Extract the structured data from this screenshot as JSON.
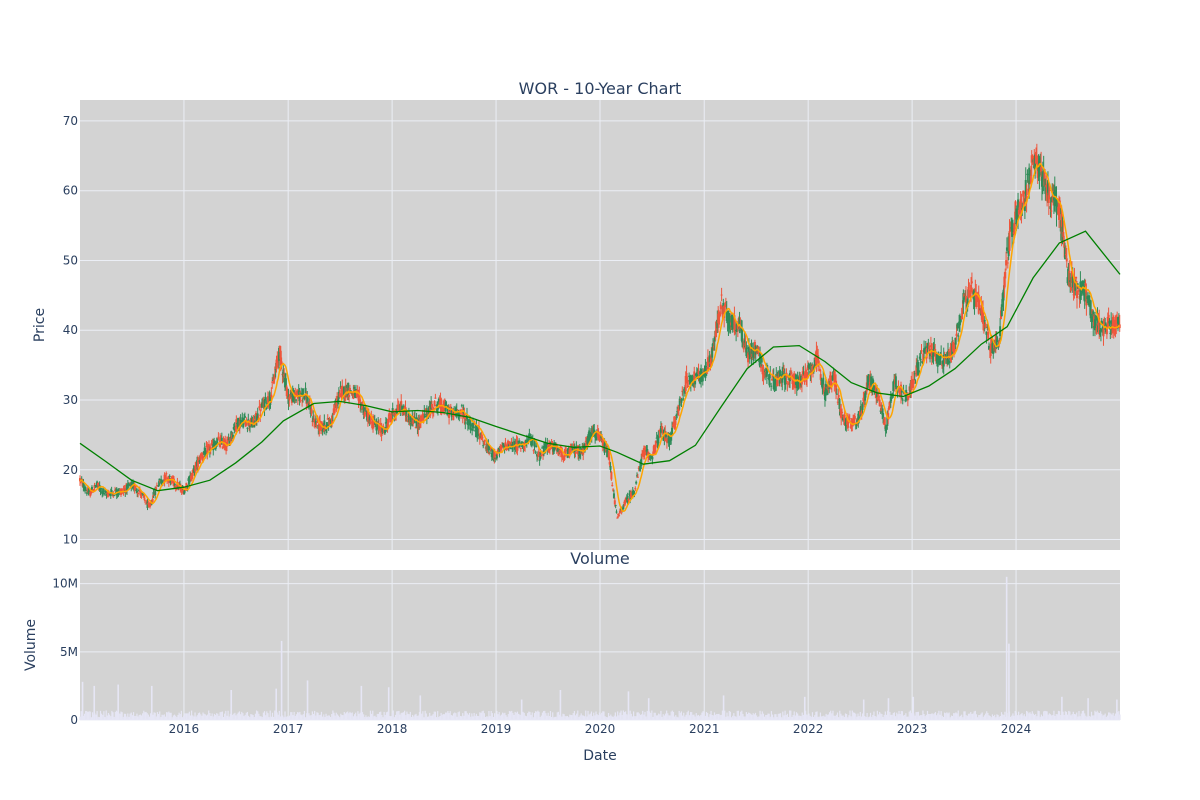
{
  "chart_data": [
    {
      "type": "candlestick",
      "title": "WOR - 10-Year Chart",
      "ylabel": "Price",
      "ylim": [
        8.5,
        73
      ],
      "yticks": [
        10,
        20,
        30,
        40,
        50,
        60,
        70
      ],
      "grid": true,
      "colors": {
        "up": "#2e8b57",
        "down": "#ef553b",
        "ma_short": "#ffa500",
        "ma_long": "#008000",
        "bg": "#d3d3d3",
        "grid": "#ebeef5"
      },
      "price_path": [
        [
          "2015-01-01",
          18.6
        ],
        [
          "2015-02-01",
          16.5
        ],
        [
          "2015-03-01",
          17.8
        ],
        [
          "2015-04-01",
          16.5
        ],
        [
          "2015-05-01",
          16.8
        ],
        [
          "2015-06-01",
          17.0
        ],
        [
          "2015-07-01",
          17.8
        ],
        [
          "2015-08-01",
          16.8
        ],
        [
          "2015-09-01",
          14.5
        ],
        [
          "2015-10-01",
          18.0
        ],
        [
          "2015-11-01",
          19.0
        ],
        [
          "2015-12-01",
          18.0
        ],
        [
          "2016-01-01",
          17.0
        ],
        [
          "2016-02-01",
          19.5
        ],
        [
          "2016-03-01",
          22.0
        ],
        [
          "2016-04-01",
          23.0
        ],
        [
          "2016-05-01",
          24.0
        ],
        [
          "2016-06-01",
          23.5
        ],
        [
          "2016-07-01",
          26.5
        ],
        [
          "2016-08-01",
          27.0
        ],
        [
          "2016-09-01",
          26.5
        ],
        [
          "2016-10-01",
          29.0
        ],
        [
          "2016-11-01",
          30.5
        ],
        [
          "2016-12-01",
          37.0
        ],
        [
          "2017-01-01",
          30.5
        ],
        [
          "2017-02-01",
          30.5
        ],
        [
          "2017-03-01",
          31.0
        ],
        [
          "2017-04-01",
          27.0
        ],
        [
          "2017-05-01",
          26.0
        ],
        [
          "2017-06-01",
          27.0
        ],
        [
          "2017-07-01",
          31.0
        ],
        [
          "2017-08-01",
          31.5
        ],
        [
          "2017-09-01",
          30.5
        ],
        [
          "2017-10-01",
          28.0
        ],
        [
          "2017-11-01",
          26.5
        ],
        [
          "2017-12-01",
          25.5
        ],
        [
          "2018-01-01",
          28.0
        ],
        [
          "2018-02-01",
          29.0
        ],
        [
          "2018-03-01",
          27.5
        ],
        [
          "2018-04-01",
          26.5
        ],
        [
          "2018-05-01",
          28.0
        ],
        [
          "2018-06-01",
          29.5
        ],
        [
          "2018-07-01",
          29.0
        ],
        [
          "2018-08-01",
          28.0
        ],
        [
          "2018-09-01",
          28.5
        ],
        [
          "2018-10-01",
          26.5
        ],
        [
          "2018-11-01",
          25.5
        ],
        [
          "2018-12-01",
          23.0
        ],
        [
          "2019-01-01",
          22.0
        ],
        [
          "2019-02-01",
          23.5
        ],
        [
          "2019-03-01",
          23.5
        ],
        [
          "2019-04-01",
          23.5
        ],
        [
          "2019-05-01",
          24.5
        ],
        [
          "2019-06-01",
          22.0
        ],
        [
          "2019-07-01",
          23.5
        ],
        [
          "2019-08-01",
          23.0
        ],
        [
          "2019-09-01",
          22.0
        ],
        [
          "2019-10-01",
          23.0
        ],
        [
          "2019-11-01",
          22.5
        ],
        [
          "2019-12-01",
          25.5
        ],
        [
          "2020-01-01",
          24.5
        ],
        [
          "2020-02-01",
          22.0
        ],
        [
          "2020-03-01",
          13.0
        ],
        [
          "2020-04-01",
          15.5
        ],
        [
          "2020-05-01",
          17.0
        ],
        [
          "2020-06-01",
          22.5
        ],
        [
          "2020-07-01",
          22.0
        ],
        [
          "2020-08-01",
          25.5
        ],
        [
          "2020-09-01",
          24.0
        ],
        [
          "2020-10-01",
          28.5
        ],
        [
          "2020-11-01",
          33.0
        ],
        [
          "2020-12-01",
          33.0
        ],
        [
          "2021-01-01",
          33.5
        ],
        [
          "2021-02-01",
          37.0
        ],
        [
          "2021-03-01",
          44.0
        ],
        [
          "2021-04-01",
          41.0
        ],
        [
          "2021-05-01",
          41.0
        ],
        [
          "2021-06-01",
          36.5
        ],
        [
          "2021-07-01",
          37.5
        ],
        [
          "2021-08-01",
          34.0
        ],
        [
          "2021-09-01",
          32.5
        ],
        [
          "2021-10-01",
          33.5
        ],
        [
          "2021-11-01",
          33.0
        ],
        [
          "2021-12-01",
          32.5
        ],
        [
          "2022-01-01",
          34.0
        ],
        [
          "2022-02-01",
          36.0
        ],
        [
          "2022-03-01",
          31.0
        ],
        [
          "2022-04-01",
          33.5
        ],
        [
          "2022-05-01",
          27.5
        ],
        [
          "2022-06-01",
          26.5
        ],
        [
          "2022-07-01",
          27.5
        ],
        [
          "2022-08-01",
          33.0
        ],
        [
          "2022-09-01",
          31.0
        ],
        [
          "2022-10-01",
          26.0
        ],
        [
          "2022-11-01",
          33.0
        ],
        [
          "2022-12-01",
          30.5
        ],
        [
          "2023-01-01",
          32.0
        ],
        [
          "2023-02-01",
          36.0
        ],
        [
          "2023-03-01",
          37.5
        ],
        [
          "2023-04-01",
          36.0
        ],
        [
          "2023-05-01",
          35.5
        ],
        [
          "2023-06-01",
          38.0
        ],
        [
          "2023-07-01",
          44.0
        ],
        [
          "2023-08-01",
          45.5
        ],
        [
          "2023-09-01",
          43.0
        ],
        [
          "2023-10-01",
          37.5
        ],
        [
          "2023-11-01",
          38.5
        ],
        [
          "2023-12-01",
          51.0
        ],
        [
          "2024-01-01",
          57.0
        ],
        [
          "2024-02-01",
          59.0
        ],
        [
          "2024-03-01",
          64.0
        ],
        [
          "2024-04-01",
          62.5
        ],
        [
          "2024-05-01",
          59.0
        ],
        [
          "2024-06-01",
          57.5
        ],
        [
          "2024-07-01",
          48.0
        ],
        [
          "2024-08-01",
          46.0
        ],
        [
          "2024-09-01",
          45.5
        ],
        [
          "2024-10-01",
          41.0
        ],
        [
          "2024-11-01",
          40.5
        ],
        [
          "2024-12-01",
          41.0
        ],
        [
          "2024-12-31",
          40.5
        ]
      ],
      "ma_long": [
        [
          "2015-01-01",
          23.8
        ],
        [
          "2015-04-01",
          21.2
        ],
        [
          "2015-07-01",
          18.5
        ],
        [
          "2015-10-01",
          17.0
        ],
        [
          "2016-01-01",
          17.5
        ],
        [
          "2016-04-01",
          18.5
        ],
        [
          "2016-07-01",
          21.0
        ],
        [
          "2016-10-01",
          24.0
        ],
        [
          "2016-12-15",
          27.0
        ],
        [
          "2017-04-01",
          29.5
        ],
        [
          "2017-07-01",
          29.8
        ],
        [
          "2017-10-01",
          29.2
        ],
        [
          "2018-01-01",
          28.3
        ],
        [
          "2018-04-01",
          28.5
        ],
        [
          "2018-07-01",
          28.2
        ],
        [
          "2018-10-01",
          27.5
        ],
        [
          "2019-01-01",
          26.2
        ],
        [
          "2019-04-01",
          25.0
        ],
        [
          "2019-07-01",
          23.8
        ],
        [
          "2019-10-01",
          23.2
        ],
        [
          "2020-01-01",
          23.4
        ],
        [
          "2020-03-01",
          22.5
        ],
        [
          "2020-06-01",
          20.8
        ],
        [
          "2020-09-01",
          21.3
        ],
        [
          "2020-12-01",
          23.5
        ],
        [
          "2021-03-01",
          29.0
        ],
        [
          "2021-06-01",
          34.5
        ],
        [
          "2021-09-01",
          37.6
        ],
        [
          "2021-12-01",
          37.8
        ],
        [
          "2022-03-01",
          35.5
        ],
        [
          "2022-06-01",
          32.5
        ],
        [
          "2022-09-01",
          31.0
        ],
        [
          "2022-12-01",
          30.5
        ],
        [
          "2023-03-01",
          32.0
        ],
        [
          "2023-06-01",
          34.5
        ],
        [
          "2023-09-01",
          38.0
        ],
        [
          "2023-12-01",
          40.5
        ],
        [
          "2024-03-01",
          47.5
        ],
        [
          "2024-06-01",
          52.5
        ],
        [
          "2024-09-01",
          54.2
        ],
        [
          "2024-12-31",
          48.0
        ]
      ]
    },
    {
      "type": "bar",
      "title": "Volume",
      "ylabel": "Volume",
      "xlabel": "Date",
      "ylim": [
        0,
        11000000
      ],
      "ytick_values": [
        0,
        5000000,
        10000000
      ],
      "ytick_labels": [
        "0",
        "5M",
        "10M"
      ],
      "xtick_dates": [
        "2016-01-01",
        "2017-01-01",
        "2018-01-01",
        "2019-01-01",
        "2020-01-01",
        "2021-01-01",
        "2022-01-01",
        "2023-01-01",
        "2024-01-01"
      ],
      "xtick_labels": [
        "2016",
        "2017",
        "2018",
        "2019",
        "2020",
        "2021",
        "2022",
        "2023",
        "2024"
      ],
      "x_range": [
        "2015-01-01",
        "2024-12-31"
      ],
      "bar_color": "#e6e6f5",
      "spikes": [
        [
          "2015-01-10",
          2800000
        ],
        [
          "2015-02-20",
          2500000
        ],
        [
          "2015-05-15",
          2600000
        ],
        [
          "2015-09-10",
          2500000
        ],
        [
          "2016-06-15",
          2200000
        ],
        [
          "2016-11-20",
          2300000
        ],
        [
          "2016-12-09",
          5800000
        ],
        [
          "2017-03-10",
          2900000
        ],
        [
          "2017-09-15",
          2500000
        ],
        [
          "2017-12-20",
          2400000
        ],
        [
          "2018-04-10",
          1800000
        ],
        [
          "2019-04-01",
          1500000
        ],
        [
          "2019-08-15",
          2200000
        ],
        [
          "2020-04-10",
          2100000
        ],
        [
          "2020-06-20",
          1600000
        ],
        [
          "2021-03-10",
          1800000
        ],
        [
          "2021-12-20",
          1700000
        ],
        [
          "2022-07-15",
          1500000
        ],
        [
          "2022-10-10",
          1600000
        ],
        [
          "2023-01-05",
          1700000
        ],
        [
          "2023-11-29",
          10500000
        ],
        [
          "2023-12-07",
          5600000
        ],
        [
          "2024-06-10",
          1700000
        ],
        [
          "2024-09-10",
          1600000
        ],
        [
          "2024-12-20",
          1500000
        ]
      ]
    }
  ]
}
